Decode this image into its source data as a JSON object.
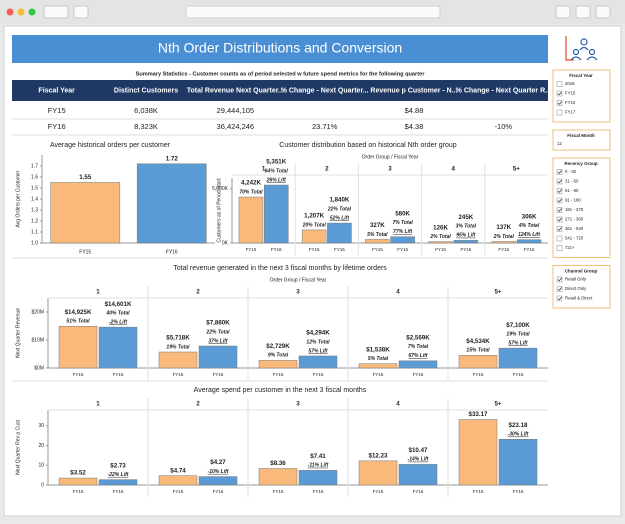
{
  "header": {
    "title": "Nth Order Distributions and Conversion"
  },
  "summary": {
    "caption": "Summary Statistics - Customer counts as of period selected w future spend metrics for the following quarter",
    "columns": [
      "Fiscal Year",
      "Distinct Customers",
      "Total Revenue Next Quarter...",
      "% Change - Next Quarter...",
      "Revenue p Customer - N...",
      "% Change - Next Quarter R..."
    ],
    "rows": [
      [
        "FY15",
        "6,038K",
        "29,444,105",
        null,
        "$4.88",
        null
      ],
      [
        "FY16",
        "8,323K",
        "36,424,246",
        "23.71%",
        "$4.38",
        "-10%"
      ]
    ]
  },
  "charts": [
    {
      "title": "Average historical orders per customer",
      "y_label": "Avg Orders per Customer",
      "categories": [
        "FY15",
        "FY16"
      ],
      "values": [
        1.55,
        1.72
      ],
      "colors": [
        "#f9b97a",
        "#5b9bd5"
      ],
      "ylim": [
        1.0,
        1.8
      ],
      "yticks": [
        {
          "value": 1.0,
          "label": "1.0"
        },
        1.1,
        1.2,
        1.3,
        1.4,
        1.5,
        1.6,
        1.7
      ]
    },
    {
      "title": "Customer distribution based on historical Nth order group",
      "subtitle": "Order Group  /  Fiscal Year",
      "y_label": "Customers as of Period Start",
      "groups": [
        "1",
        "2",
        "3",
        "4",
        "5+"
      ],
      "categories": [
        "FY15",
        "FY16"
      ],
      "colors": [
        "#f9b97a",
        "#5b9bd5"
      ],
      "values": [
        [
          4242,
          5351
        ],
        [
          1207,
          1840
        ],
        [
          327,
          580
        ],
        [
          126,
          245
        ],
        [
          137,
          306
        ]
      ],
      "value_labels": [
        [
          "4,242K",
          "5,351K"
        ],
        [
          "1,207K",
          "1,840K"
        ],
        [
          "327K",
          "580K"
        ],
        [
          "126K",
          "245K"
        ],
        [
          "137K",
          "306K"
        ]
      ],
      "total_labels": [
        [
          "70% Total",
          "64% Total"
        ],
        [
          "20% Total",
          "22% Total"
        ],
        [
          "5% Total",
          "7% Total"
        ],
        [
          "2% Total",
          "3% Total"
        ],
        [
          "2% Total",
          "4% Total"
        ]
      ],
      "lift_labels": [
        "26% Lift",
        "52% Lift",
        "77% Lift",
        "95% Lift",
        "124% Lift"
      ],
      "ylim": [
        0,
        6000
      ],
      "yticks": [
        {
          "value": 0,
          "label": "0K"
        },
        {
          "value": 5000,
          "label": "5,000K"
        }
      ]
    },
    {
      "title": "Total revenue generated in the next 3 fiscal months by lifetime orders",
      "subtitle": "Order Group  /  Fiscal Year",
      "y_label": "Next Quarter Revenue",
      "groups": [
        "1",
        "2",
        "3",
        "4",
        "5+"
      ],
      "categories": [
        "FY15",
        "FY16"
      ],
      "colors": [
        "#f9b97a",
        "#5b9bd5"
      ],
      "values": [
        [
          14.925,
          14.601
        ],
        [
          5.718,
          7.86
        ],
        [
          2.729,
          4.294
        ],
        [
          1.538,
          2.569
        ],
        [
          4.534,
          7.1
        ]
      ],
      "value_labels": [
        [
          "$14,925K",
          "$14,601K"
        ],
        [
          "$5,718K",
          "$7,860K"
        ],
        [
          "$2,729K",
          "$4,294K"
        ],
        [
          "$1,538K",
          "$2,569K"
        ],
        [
          "$4,534K",
          "$7,100K"
        ]
      ],
      "total_labels": [
        [
          "51% Total",
          "40% Total"
        ],
        [
          "19% Total",
          "22% Total"
        ],
        [
          "9% Total",
          "12% Total"
        ],
        [
          "5% Total",
          "7% Total"
        ],
        [
          "15% Total",
          "19% Total"
        ]
      ],
      "lift_labels": [
        "-2% Lift",
        "37% Lift",
        "57% Lift",
        "67% Lift",
        "57% Lift"
      ],
      "ylim": [
        0,
        25
      ],
      "yticks": [
        {
          "value": 0,
          "label": "$0M"
        },
        {
          "value": 10,
          "label": "$10M"
        },
        {
          "value": 20,
          "label": "$20M"
        }
      ]
    },
    {
      "title": "Average spend per customer in the next 3 fiscal months",
      "y_label": "Next Quarter Rev p Cust",
      "groups": [
        "1",
        "2",
        "3",
        "4",
        "5+"
      ],
      "categories": [
        "FY15",
        "FY16"
      ],
      "colors": [
        "#f9b97a",
        "#5b9bd5"
      ],
      "values": [
        [
          3.52,
          2.73
        ],
        [
          4.74,
          4.27
        ],
        [
          8.36,
          7.41
        ],
        [
          12.23,
          10.47
        ],
        [
          33.17,
          23.18
        ]
      ],
      "value_labels": [
        [
          "$3.52",
          "$2.73"
        ],
        [
          "$4.74",
          "$4.27"
        ],
        [
          "$8.36",
          "$7.41"
        ],
        [
          "$12.23",
          "$10.47"
        ],
        [
          "$33.17",
          "$23.18"
        ]
      ],
      "lift_labels": [
        "-22% Lift",
        "-10% Lift",
        "-11% Lift",
        "-14% Lift",
        "-30% Lift"
      ],
      "ylim": [
        0,
        38
      ],
      "yticks": [
        0,
        10,
        20,
        30
      ]
    }
  ],
  "filters": [
    {
      "title": "Fiscal Year",
      "items": [
        {
          "label": "2018",
          "checked": false
        },
        {
          "label": "FY15",
          "checked": true
        },
        {
          "label": "FY16",
          "checked": true
        },
        {
          "label": "FY17",
          "checked": false
        }
      ]
    },
    {
      "title": "Recency Group",
      "items": [
        {
          "label": "0 - 30",
          "checked": true
        },
        {
          "label": "31 - 60",
          "checked": true
        },
        {
          "label": "61 - 90",
          "checked": true
        },
        {
          "label": "91 - 180",
          "checked": true
        },
        {
          "label": "181 - 270",
          "checked": true
        },
        {
          "label": "271 - 360",
          "checked": true
        },
        {
          "label": "361 - 540",
          "checked": true
        },
        {
          "label": "541 - 720",
          "checked": false
        },
        {
          "label": "721+",
          "checked": false
        }
      ]
    },
    {
      "title": "Channel Group",
      "items": [
        {
          "label": "Retail Only",
          "checked": true
        },
        {
          "label": "Direct Only",
          "checked": true
        },
        {
          "label": "Retail & Direct",
          "checked": true
        }
      ]
    }
  ],
  "month_filter": {
    "title": "Fiscal Month",
    "value": "12"
  }
}
